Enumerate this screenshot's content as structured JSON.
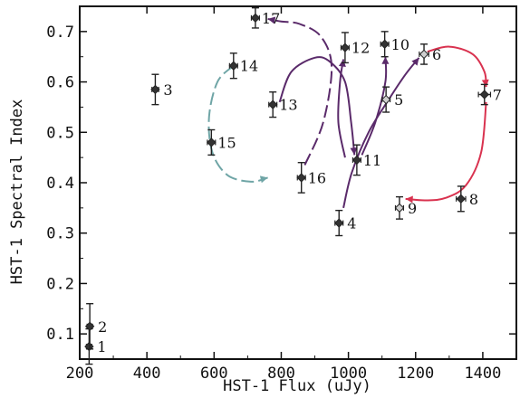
{
  "chart_data": {
    "type": "scatter",
    "title": "",
    "xlabel": "HST-1 Flux (uJy)",
    "ylabel": "HST-1 Spectral Index",
    "xlim": [
      200,
      1500
    ],
    "ylim": [
      0.05,
      0.75
    ],
    "grid": false,
    "x_ticks": [
      "200",
      "400",
      "600",
      "800",
      "1000",
      "1200",
      "1400"
    ],
    "y_ticks": [
      "0.1",
      "0.2",
      "0.3",
      "0.4",
      "0.5",
      "0.6",
      "0.7"
    ],
    "points": [
      {
        "label": "1",
        "x": 228,
        "y": 0.075,
        "xerr": 8,
        "yerr": 0.035,
        "filled": true
      },
      {
        "label": "2",
        "x": 230,
        "y": 0.115,
        "xerr": 8,
        "yerr": 0.045,
        "filled": true
      },
      {
        "label": "3",
        "x": 425,
        "y": 0.585,
        "xerr": 10,
        "yerr": 0.03,
        "filled": true
      },
      {
        "label": "4",
        "x": 972,
        "y": 0.32,
        "xerr": 12,
        "yerr": 0.025,
        "filled": true
      },
      {
        "label": "5",
        "x": 1112,
        "y": 0.565,
        "xerr": 12,
        "yerr": 0.025,
        "filled": false
      },
      {
        "label": "6",
        "x": 1225,
        "y": 0.655,
        "xerr": 14,
        "yerr": 0.02,
        "filled": false
      },
      {
        "label": "7",
        "x": 1405,
        "y": 0.575,
        "xerr": 18,
        "yerr": 0.02,
        "filled": true
      },
      {
        "label": "8",
        "x": 1335,
        "y": 0.368,
        "xerr": 14,
        "yerr": 0.025,
        "filled": true
      },
      {
        "label": "9",
        "x": 1152,
        "y": 0.35,
        "xerr": 12,
        "yerr": 0.022,
        "filled": false
      },
      {
        "label": "10",
        "x": 1108,
        "y": 0.675,
        "xerr": 12,
        "yerr": 0.025,
        "filled": true
      },
      {
        "label": "11",
        "x": 1025,
        "y": 0.445,
        "xerr": 12,
        "yerr": 0.03,
        "filled": true
      },
      {
        "label": "12",
        "x": 990,
        "y": 0.668,
        "xerr": 12,
        "yerr": 0.03,
        "filled": true
      },
      {
        "label": "13",
        "x": 775,
        "y": 0.555,
        "xerr": 12,
        "yerr": 0.025,
        "filled": true
      },
      {
        "label": "14",
        "x": 658,
        "y": 0.632,
        "xerr": 12,
        "yerr": 0.025,
        "filled": true
      },
      {
        "label": "15",
        "x": 592,
        "y": 0.48,
        "xerr": 12,
        "yerr": 0.025,
        "filled": true
      },
      {
        "label": "16",
        "x": 860,
        "y": 0.41,
        "xerr": 12,
        "yerr": 0.03,
        "filled": true
      },
      {
        "label": "17",
        "x": 723,
        "y": 0.727,
        "xerr": 12,
        "yerr": 0.02,
        "filled": true
      }
    ],
    "trajectories": [
      {
        "color": "#6fa5a6",
        "dashed": true,
        "path": [
          [
            658,
            0.632
          ],
          [
            610,
            0.6
          ],
          [
            585,
            0.53
          ],
          [
            595,
            0.46
          ],
          [
            640,
            0.415
          ],
          [
            710,
            0.402
          ],
          [
            760,
            0.41
          ]
        ]
      },
      {
        "color": "#5a2a6a",
        "dashed": true,
        "path": [
          [
            870,
            0.435
          ],
          [
            925,
            0.52
          ],
          [
            950,
            0.63
          ],
          [
            918,
            0.69
          ],
          [
            855,
            0.715
          ],
          [
            800,
            0.72
          ],
          [
            760,
            0.725
          ]
        ]
      },
      {
        "color": "#5a2a6a",
        "dashed": false,
        "path": [
          [
            795,
            0.56
          ],
          [
            830,
            0.62
          ],
          [
            900,
            0.648
          ],
          [
            945,
            0.64
          ],
          [
            990,
            0.6
          ],
          [
            1008,
            0.52
          ],
          [
            1018,
            0.455
          ]
        ]
      },
      {
        "color": "#5a2a6a",
        "dashed": false,
        "path": [
          [
            990,
            0.45
          ],
          [
            970,
            0.52
          ],
          [
            975,
            0.6
          ],
          [
            985,
            0.645
          ]
        ]
      },
      {
        "color": "#5a2a6a",
        "dashed": false,
        "path": [
          [
            985,
            0.35
          ],
          [
            1010,
            0.42
          ],
          [
            1060,
            0.5
          ],
          [
            1120,
            0.565
          ],
          [
            1170,
            0.615
          ],
          [
            1210,
            0.648
          ]
        ]
      },
      {
        "color": "#5a2a6a",
        "dashed": false,
        "path": [
          [
            1040,
            0.455
          ],
          [
            1080,
            0.52
          ],
          [
            1110,
            0.6
          ],
          [
            1110,
            0.65
          ]
        ]
      },
      {
        "color": "#d9324f",
        "dashed": false,
        "path": [
          [
            1235,
            0.66
          ],
          [
            1300,
            0.67
          ],
          [
            1370,
            0.655
          ],
          [
            1405,
            0.62
          ],
          [
            1410,
            0.59
          ]
        ]
      },
      {
        "color": "#d9324f",
        "dashed": false,
        "path": [
          [
            1410,
            0.56
          ],
          [
            1395,
            0.46
          ],
          [
            1350,
            0.395
          ],
          [
            1290,
            0.37
          ],
          [
            1230,
            0.365
          ],
          [
            1170,
            0.368
          ]
        ]
      }
    ]
  }
}
